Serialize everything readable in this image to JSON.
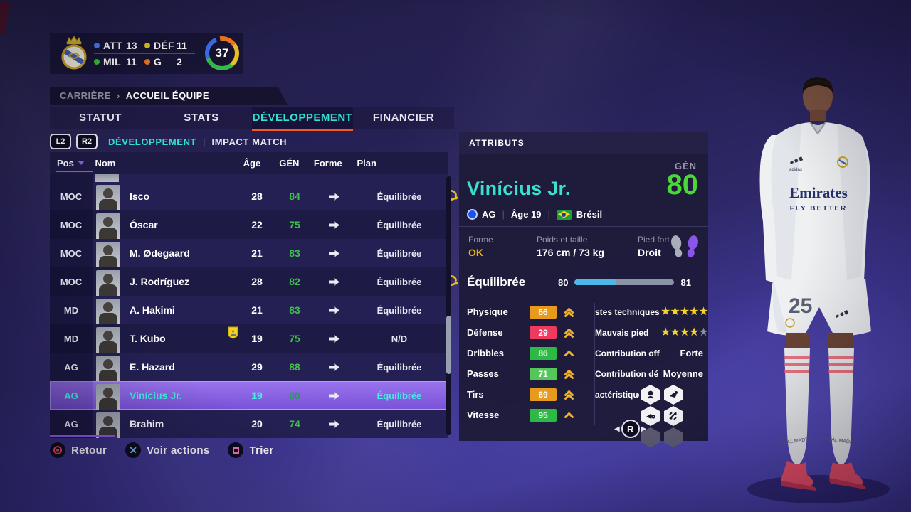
{
  "colors": {
    "accent_cyan": "#3BE0D0",
    "rating_green": "#4AD838",
    "table_rating_green": "#3FC04A",
    "selected_purple": "#8A63E0",
    "tab_underline_orange": "#F25C1E",
    "badge_orange": "#E89A1E",
    "badge_red": "#EF3A5F",
    "badge_green": "#2EB844",
    "badge_light_green": "#55C659",
    "chevron_yellow": "#F2B32A",
    "star_yellow": "#F5D327",
    "slider_blue": "#4CB8E8",
    "active_dot_orange": "#E8501E",
    "forme_ok_yellow": "#E8B41E",
    "pos_sort_purple": "#8A5FE8"
  },
  "club_summary": {
    "stats": [
      {
        "label": "ATT",
        "value": "13"
      },
      {
        "label": "DÉF",
        "value": "11"
      },
      {
        "label": "MIL",
        "value": "11"
      },
      {
        "label": "G",
        "value": "2"
      }
    ],
    "overall": "37"
  },
  "breadcrumb": {
    "section": "CARRIÈRE",
    "separator": "›",
    "page": "ACCUEIL ÉQUIPE"
  },
  "tabs": [
    {
      "label": "STATUT",
      "active": false
    },
    {
      "label": "STATS",
      "active": false
    },
    {
      "label": "DÉVELOPPEMENT",
      "active": true
    },
    {
      "label": "FINANCIER",
      "active": false
    }
  ],
  "subnav": {
    "l2": "L2",
    "r2": "R2",
    "primary": "DÉVELOPPEMENT",
    "secondary": "IMPACT MATCH"
  },
  "table": {
    "headers": {
      "pos": "Pos",
      "name": "Nom",
      "age": "Âge",
      "gen": "GÉN",
      "forme": "Forme",
      "plan": "Plan"
    },
    "rows": [
      {
        "pos": "MOC",
        "name": "Isco",
        "age": "28",
        "gen": "84",
        "plan": "Équilibrée",
        "sharpness": true,
        "loan": false,
        "selected": false
      },
      {
        "pos": "MOC",
        "name": "Óscar",
        "age": "22",
        "gen": "75",
        "plan": "Équilibrée",
        "sharpness": false,
        "loan": false,
        "selected": false
      },
      {
        "pos": "MOC",
        "name": "M. Ødegaard",
        "age": "21",
        "gen": "83",
        "plan": "Équilibrée",
        "sharpness": false,
        "loan": false,
        "selected": false
      },
      {
        "pos": "MOC",
        "name": "J. Rodríguez",
        "age": "28",
        "gen": "82",
        "plan": "Équilibrée",
        "sharpness": true,
        "loan": false,
        "selected": false
      },
      {
        "pos": "MD",
        "name": "A. Hakimi",
        "age": "21",
        "gen": "83",
        "plan": "Équilibrée",
        "sharpness": false,
        "loan": false,
        "selected": false
      },
      {
        "pos": "MD",
        "name": "T. Kubo",
        "age": "19",
        "gen": "75",
        "plan": "N/D",
        "sharpness": false,
        "loan": true,
        "selected": false
      },
      {
        "pos": "AG",
        "name": "E. Hazard",
        "age": "29",
        "gen": "88",
        "plan": "Équilibrée",
        "sharpness": false,
        "loan": false,
        "selected": false
      },
      {
        "pos": "AG",
        "name": "Vinícius Jr.",
        "age": "19",
        "gen": "80",
        "plan": "Équilibrée",
        "sharpness": false,
        "loan": false,
        "selected": true
      },
      {
        "pos": "AG",
        "name": "Brahim",
        "age": "20",
        "gen": "74",
        "plan": "Équilibrée",
        "sharpness": false,
        "loan": false,
        "selected": false
      }
    ]
  },
  "actions": [
    {
      "icon": "circle-button-icon",
      "label": "Retour"
    },
    {
      "icon": "cross-button-icon",
      "label": "Voir actions"
    },
    {
      "icon": "square-button-icon",
      "label": "Trier"
    }
  ],
  "attributes_panel": {
    "title": "ATTRIBUTS",
    "player_name": "Vinícius Jr.",
    "gen_label": "GÉN",
    "gen_value": "80",
    "position": "AG",
    "age": "Âge 19",
    "nation": "Brésil",
    "info": [
      {
        "label": "Forme",
        "value": "OK"
      },
      {
        "label": "Poids et taille",
        "value": "176 cm / 73 kg"
      },
      {
        "label": "Pied fort",
        "value": "Droit"
      }
    ],
    "growth": {
      "plan": "Équilibrée",
      "current": "80",
      "potential": "81",
      "fill_pct": 42
    },
    "stats": [
      {
        "label": "Physique",
        "value": "66",
        "tone": "orange",
        "trend": "double"
      },
      {
        "label": "Défense",
        "value": "29",
        "tone": "red",
        "trend": "double"
      },
      {
        "label": "Dribbles",
        "value": "86",
        "tone": "green",
        "trend": "single"
      },
      {
        "label": "Passes",
        "value": "71",
        "tone": "green-light",
        "trend": "double"
      },
      {
        "label": "Tirs",
        "value": "69",
        "tone": "orange",
        "trend": "double"
      },
      {
        "label": "Vitesse",
        "value": "95",
        "tone": "green",
        "trend": "single"
      }
    ],
    "traits": [
      {
        "label": "stes techniques",
        "stars": 5,
        "max": 5
      },
      {
        "label": "Mauvais pied",
        "stars": 4,
        "max": 5
      }
    ],
    "contributions": [
      {
        "label": "Contribution off",
        "value": "Forte"
      },
      {
        "label": "Contribution dé",
        "value": "Moyenne"
      }
    ],
    "characteristics": {
      "label": "actéristiques",
      "filled_slots": 4,
      "empty_slots": 2
    },
    "pager": {
      "button": "R",
      "dots": 4,
      "active_index": 0
    }
  }
}
